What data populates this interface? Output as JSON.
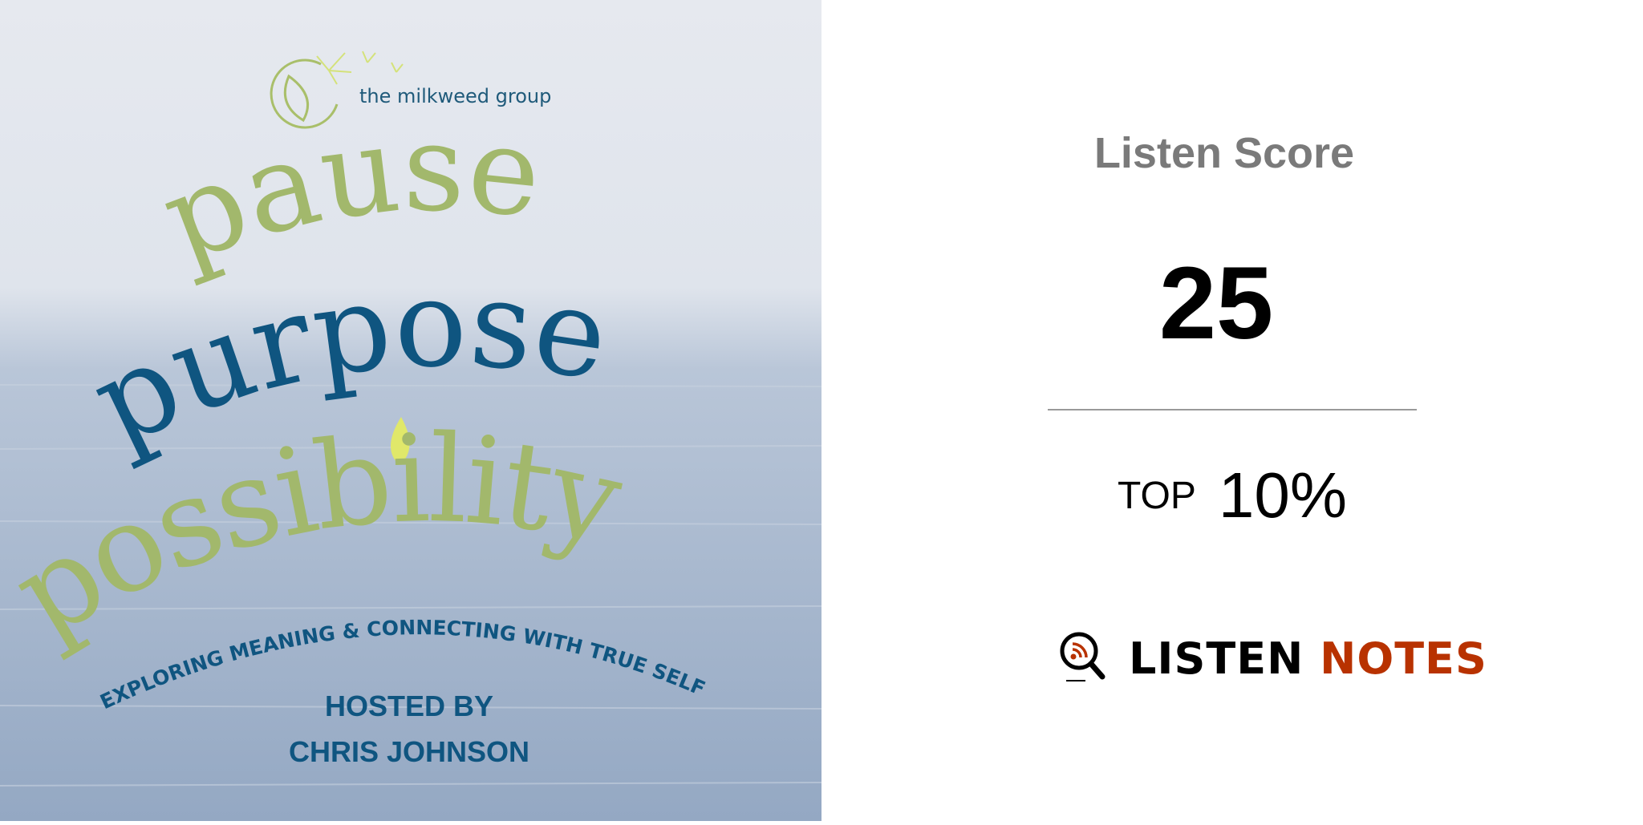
{
  "artwork": {
    "brand": "the milkweed group",
    "title_words": [
      "pause",
      "purpose",
      "possibility"
    ],
    "tagline": "EXPLORING MEANING & CONNECTING WITH TRUE SELF",
    "hosted_by": "HOSTED BY",
    "host": "CHRIS JOHNSON",
    "colors": {
      "green": "#a2b86c",
      "blue": "#0f5580",
      "sky": "#e4e8ef",
      "sea": "#9fb0c8"
    }
  },
  "score_panel": {
    "title": "Listen Score",
    "score": "25",
    "top_label": "TOP",
    "top_value": "10%",
    "logo_listen": "LISTEN",
    "logo_notes": "NOTES",
    "colors": {
      "accent": "#b83200"
    }
  }
}
